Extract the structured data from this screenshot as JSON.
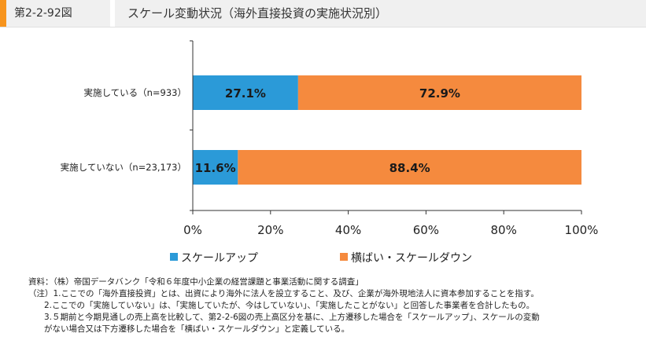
{
  "header": {
    "figure_number": "第2-2-92図",
    "title": "スケール変動状況（海外直接投資の実施状況別）"
  },
  "colors": {
    "accent": "#f7941d",
    "scale_up": "#2b9ad8",
    "flat_or_down": "#f58a3e"
  },
  "chart_data": {
    "type": "bar",
    "orientation": "horizontal",
    "stacked": true,
    "categories": [
      "実施している（n=933）",
      "実施していない（n=23,173）"
    ],
    "series": [
      {
        "name": "スケールアップ",
        "values": [
          27.1,
          11.6
        ],
        "labels": [
          "27.1%",
          "11.6%"
        ],
        "color": "#2b9ad8"
      },
      {
        "name": "横ばい・スケールダウン",
        "values": [
          72.9,
          88.4
        ],
        "labels": [
          "72.9%",
          "88.4%"
        ],
        "color": "#f58a3e"
      }
    ],
    "xlim": [
      0,
      100
    ],
    "xticks": [
      "0%",
      "20%",
      "40%",
      "60%",
      "80%",
      "100%"
    ],
    "grid": false,
    "legend_position": "bottom"
  },
  "notes": [
    "資料：（株）帝国データバンク「令和６年度中小企業の経営課題と事業活動に関する調査」",
    "（注）1.ここでの「海外直接投資」とは、出資により海外に法人を設立すること、及び、企業が海外現地法人に資本参加することを指す。",
    "2.ここでの「実施していない」は、「実施していたが、今はしていない」、「実施したことがない」と回答した事業者を合計したもの。",
    "3.５期前と今期見通しの売上高を比較して、第2-2-6図の売上高区分を基に、上方遷移した場合を「スケールアップ」、スケールの変動",
    "がない場合又は下方遷移した場合を「横ばい・スケールダウン」と定義している。"
  ]
}
